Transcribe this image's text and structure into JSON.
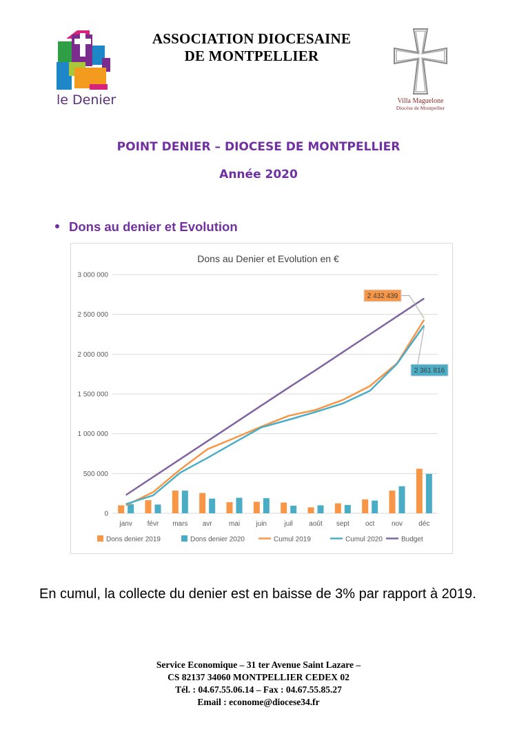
{
  "header": {
    "org_line1": "ASSOCIATION DIOCESAINE",
    "org_line2": "DE MONTPELLIER",
    "logo_left_text": "le Denier",
    "logo_right_name": "Villa Maguelone",
    "logo_right_sub": "Diocèse de Montpellier"
  },
  "titles": {
    "main": "POINT DENIER – DIOCESE DE MONTPELLIER",
    "year": "Année 2020"
  },
  "section": {
    "heading": "Dons au denier et Evolution"
  },
  "chart_data": {
    "type": "bar",
    "title": "Dons au Denier et Evolution en €",
    "categories": [
      "janv",
      "févr",
      "mars",
      "avr",
      "mai",
      "juin",
      "juil",
      "août",
      "sept",
      "oct",
      "nov",
      "déc"
    ],
    "ylim": [
      0,
      3000000
    ],
    "yticks": [
      0,
      500000,
      1000000,
      1500000,
      2000000,
      2500000,
      3000000
    ],
    "ytick_labels": [
      "0",
      "500 000",
      "1 000 000",
      "1 500 000",
      "2 000 000",
      "2 500 000",
      "3 000 000"
    ],
    "grid": true,
    "legend_position": "bottom",
    "series": [
      {
        "name": "Dons denier 2019",
        "type": "bar",
        "color": "#f79646",
        "values": [
          100000,
          165000,
          285000,
          255000,
          140000,
          145000,
          135000,
          75000,
          125000,
          175000,
          285000,
          560000
        ]
      },
      {
        "name": "Dons denier 2020",
        "type": "bar",
        "color": "#4bacc6",
        "values": [
          115000,
          110000,
          285000,
          185000,
          195000,
          190000,
          95000,
          100000,
          105000,
          160000,
          340000,
          495000
        ]
      },
      {
        "name": "Cumul 2019",
        "type": "line",
        "color": "#f79646",
        "values": [
          100000,
          265000,
          550000,
          805000,
          945000,
          1090000,
          1225000,
          1300000,
          1425000,
          1600000,
          1885000,
          2432439
        ]
      },
      {
        "name": "Cumul 2020",
        "type": "line",
        "color": "#4bacc6",
        "values": [
          115000,
          225000,
          510000,
          695000,
          890000,
          1080000,
          1175000,
          1275000,
          1380000,
          1540000,
          1880000,
          2361816
        ]
      },
      {
        "name": "Budget",
        "type": "line",
        "color": "#8064a2",
        "values": [
          230000,
          455000,
          680000,
          905000,
          1130000,
          1355000,
          1580000,
          1800000,
          2025000,
          2250000,
          2475000,
          2700000
        ]
      }
    ],
    "annotations": [
      {
        "text": "2 432 439",
        "series": "Cumul 2019",
        "category": "déc",
        "fill": "#f79646"
      },
      {
        "text": "2 361 816",
        "series": "Cumul 2020",
        "category": "déc",
        "fill": "#4bacc6"
      }
    ]
  },
  "body": {
    "text": "En cumul, la collecte du denier est en baisse de 3% par rapport à 2019."
  },
  "footer": {
    "line1": "Service Economique – 31 ter Avenue Saint Lazare –",
    "line2": "CS 82137  34060 MONTPELLIER CEDEX 02",
    "line3": "Tél. : 04.67.55.06.14 – Fax : 04.67.55.85.27",
    "line4": "Email : econome@diocese34.fr"
  }
}
